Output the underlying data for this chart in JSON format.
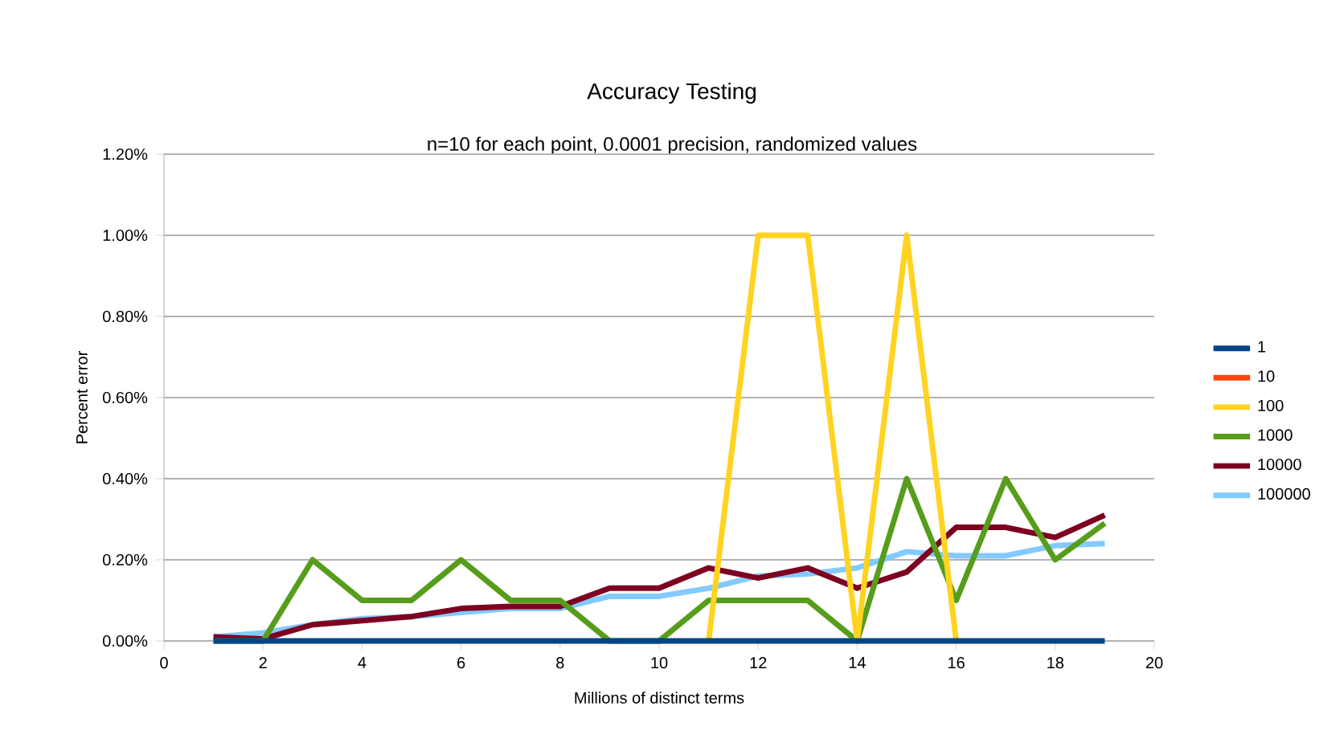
{
  "chart_data": {
    "type": "line",
    "title": "Accuracy Testing",
    "subtitle": "n=10 for each point, 0.0001 precision, randomized values",
    "xlabel": "Millions of distinct terms",
    "ylabel": "Percent error",
    "x": [
      1,
      2,
      3,
      4,
      5,
      6,
      7,
      8,
      9,
      10,
      11,
      12,
      13,
      14,
      15,
      16,
      17,
      18,
      19
    ],
    "series": [
      {
        "name": "1",
        "color": "#004586",
        "values": [
          0,
          0,
          0,
          0,
          0,
          0,
          0,
          0,
          0,
          0,
          0,
          0,
          0,
          0,
          0,
          0,
          0,
          0,
          0
        ]
      },
      {
        "name": "10",
        "color": "#ff420e",
        "values": [
          null,
          null,
          null,
          null,
          null,
          null,
          null,
          null,
          null,
          null,
          null,
          null,
          null,
          null,
          null,
          null,
          null,
          null,
          null
        ]
      },
      {
        "name": "100",
        "color": "#ffd320",
        "values": [
          null,
          null,
          null,
          null,
          null,
          null,
          null,
          null,
          null,
          null,
          0,
          1.0,
          1.0,
          0,
          1.0,
          0,
          null,
          null,
          null
        ]
      },
      {
        "name": "1000",
        "color": "#579d1c",
        "values": [
          0,
          0,
          0.2,
          0.1,
          0.1,
          0.2,
          0.1,
          0.1,
          0,
          0,
          0.1,
          0.1,
          0.1,
          0,
          0.4,
          0.1,
          0.4,
          0.2,
          0.29
        ]
      },
      {
        "name": "10000",
        "color": "#7e0021",
        "values": [
          0.01,
          0.005,
          0.04,
          0.05,
          0.06,
          0.08,
          0.085,
          0.085,
          0.13,
          0.13,
          0.18,
          0.155,
          0.18,
          0.13,
          0.17,
          0.28,
          0.28,
          0.255,
          0.31
        ]
      },
      {
        "name": "100000",
        "color": "#83caff",
        "values": [
          0.01,
          0.02,
          0.04,
          0.055,
          0.06,
          0.07,
          0.08,
          0.08,
          0.11,
          0.11,
          0.13,
          0.16,
          0.165,
          0.18,
          0.22,
          0.21,
          0.21,
          0.235,
          0.24
        ]
      }
    ],
    "xlim": [
      0,
      20
    ],
    "xticks": [
      0,
      2,
      4,
      6,
      8,
      10,
      12,
      14,
      16,
      18,
      20
    ],
    "ylim": [
      0,
      1.2
    ],
    "yticks": [
      {
        "value": 0,
        "label": "0.00%"
      },
      {
        "value": 0.2,
        "label": "0.20%"
      },
      {
        "value": 0.4,
        "label": "0.40%"
      },
      {
        "value": 0.6,
        "label": "0.60%"
      },
      {
        "value": 0.8,
        "label": "0.80%"
      },
      {
        "value": 1.0,
        "label": "1.00%"
      },
      {
        "value": 1.2,
        "label": "1.20%"
      }
    ],
    "grid": "y",
    "legend": "right",
    "marker": "none",
    "line_style": "solid"
  }
}
